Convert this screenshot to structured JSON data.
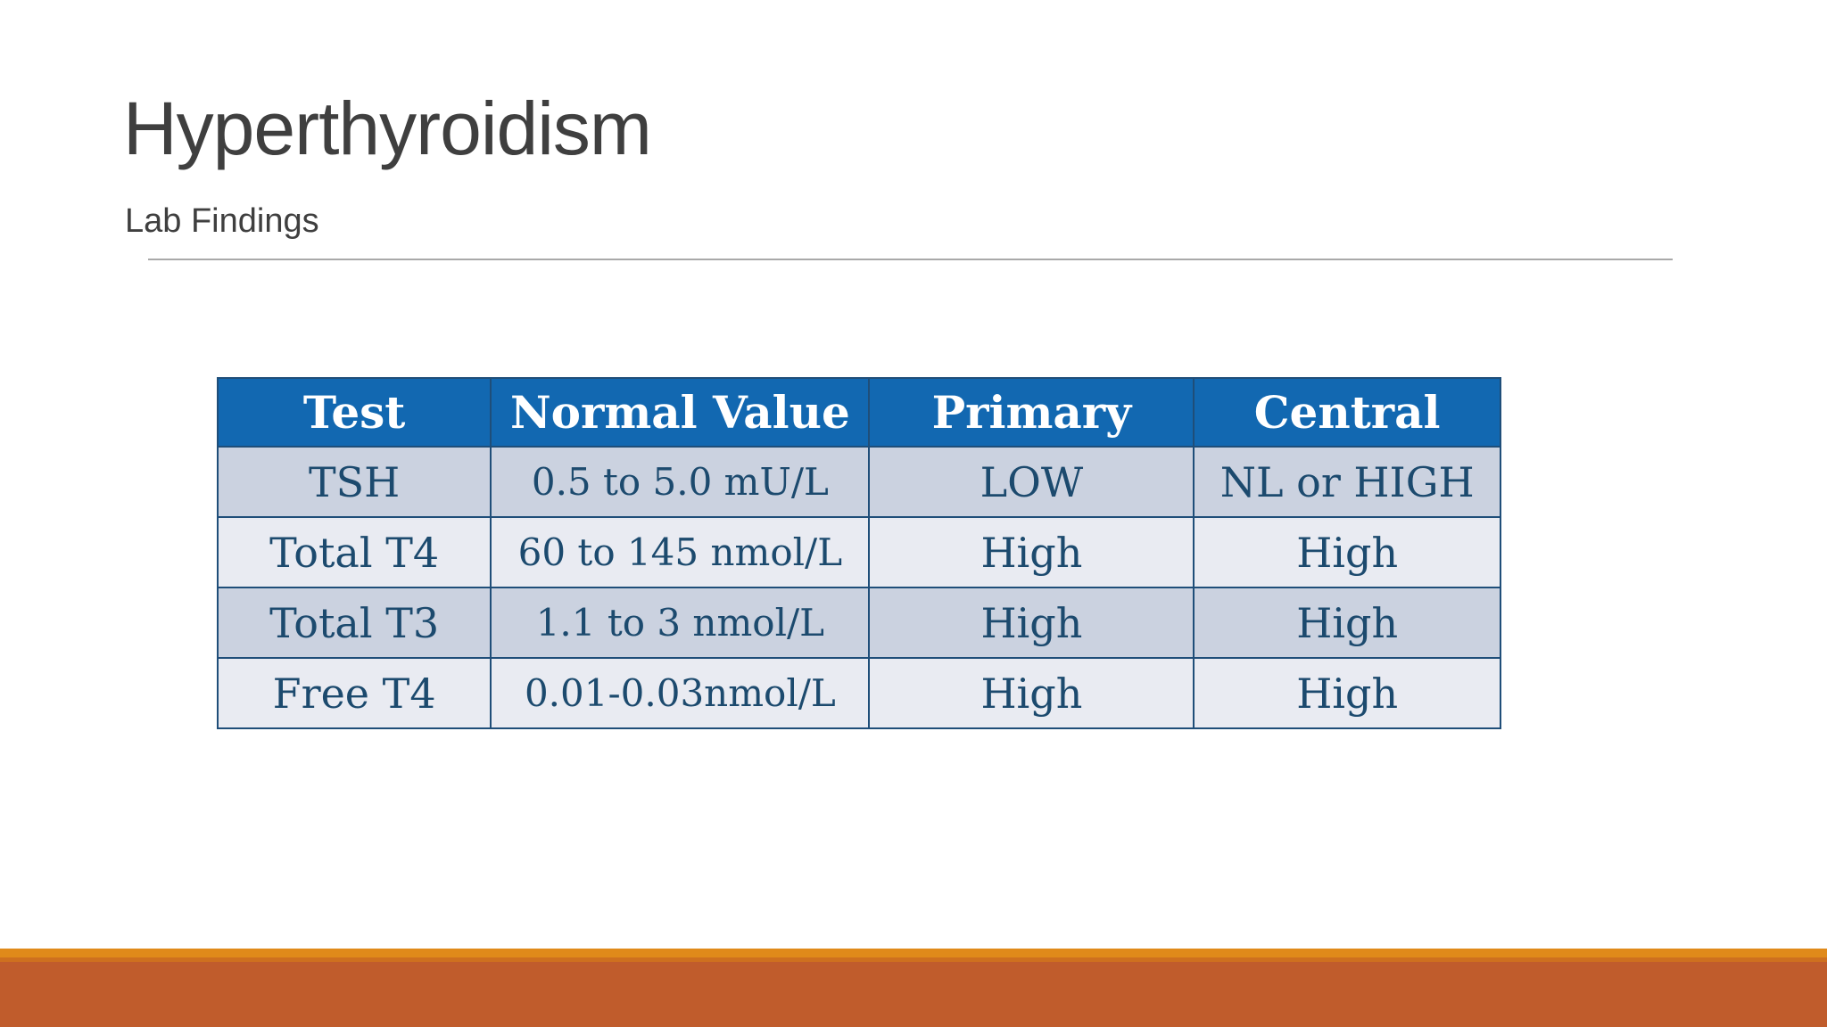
{
  "slide": {
    "title": "Hyperthyroidism",
    "subtitle": "Lab Findings"
  },
  "table": {
    "headers": [
      "Test",
      "Normal Value",
      "Primary",
      "Central"
    ],
    "rows": [
      {
        "cells": [
          "TSH",
          "0.5 to 5.0 mU/L",
          "LOW",
          "NL or HIGH"
        ]
      },
      {
        "cells": [
          "Total T4",
          "60 to 145 nmol/L",
          "High",
          "High"
        ]
      },
      {
        "cells": [
          "Total T3",
          "1.1 to 3 nmol/L",
          "High",
          "High"
        ]
      },
      {
        "cells": [
          "Free T4",
          "0.01-0.03nmol/L",
          "High",
          "High"
        ]
      }
    ]
  },
  "colors": {
    "table_header_bg": "#1268b1",
    "table_header_text": "#ffffff",
    "row_band_dark": "#cbd2e0",
    "row_band_light": "#e9ebf2",
    "table_border": "#1f4e79",
    "cell_text": "#1c4a6e",
    "title_text": "#3f3f3f",
    "divider_line": "#a9a9a9",
    "accent_gold": "#e08a1a",
    "accent_rust": "#c05c2c"
  }
}
